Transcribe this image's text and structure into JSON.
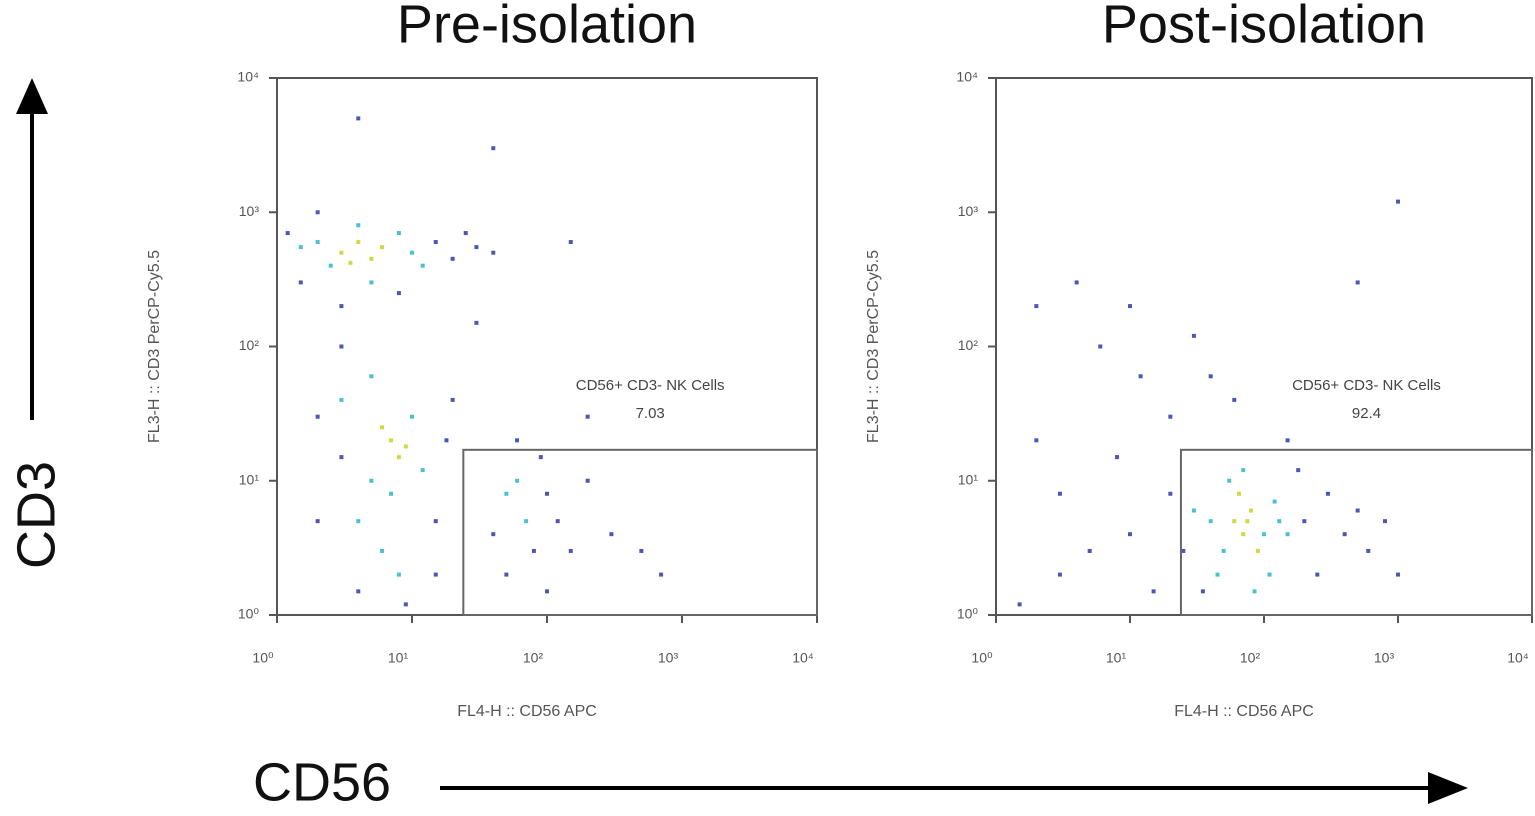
{
  "annotations": {
    "y": "CD3",
    "x": "CD56"
  },
  "chart_data": [
    {
      "type": "scatter",
      "title": "Pre-isolation",
      "xlabel": "FL4-H :: CD56 APC",
      "ylabel": "FL3-H :: CD3 PerCP-Cy5.5",
      "log_x": true,
      "log_y": true,
      "xlim": [
        1,
        10000
      ],
      "ylim": [
        1,
        10000
      ],
      "xticks": [
        {
          "value": 1,
          "label": "10⁰"
        },
        {
          "value": 10,
          "label": "10¹"
        },
        {
          "value": 100,
          "label": "10²"
        },
        {
          "value": 1000,
          "label": "10³"
        },
        {
          "value": 10000,
          "label": "10⁴"
        }
      ],
      "yticks": [
        {
          "value": 1,
          "label": "10⁰"
        },
        {
          "value": 10,
          "label": "10¹"
        },
        {
          "value": 100,
          "label": "10²"
        },
        {
          "value": 1000,
          "label": "10³"
        },
        {
          "value": 10000,
          "label": "10⁴"
        }
      ],
      "gate": {
        "xlim": [
          24,
          10000
        ],
        "ylim": [
          1,
          17
        ],
        "label": "CD56+ CD3- NK Cells",
        "percent": 7.03
      },
      "series": [
        {
          "color": "#2a3aa8",
          "x": [
            1.2,
            1.5,
            15,
            20,
            30,
            40,
            25,
            2,
            8,
            3,
            2,
            3,
            2,
            15,
            18,
            20,
            15,
            4,
            9,
            3,
            40,
            80,
            100,
            120,
            90,
            50,
            150,
            200,
            60,
            300,
            500,
            700,
            100,
            30,
            200,
            150,
            40,
            4
          ],
          "y": [
            700,
            300,
            600,
            450,
            550,
            500,
            700,
            1000,
            250,
            200,
            30,
            15,
            5,
            5,
            20,
            40,
            2,
            1.5,
            1.2,
            100,
            4,
            3,
            8,
            5,
            15,
            2,
            3,
            10,
            20,
            4,
            3,
            2,
            1.5,
            150,
            30,
            600,
            3000,
            5000
          ]
        },
        {
          "color": "#2bb5c8",
          "x": [
            2,
            2.5,
            8,
            10,
            1.5,
            12,
            5,
            4,
            5,
            7,
            10,
            4,
            6,
            12,
            50,
            70,
            60,
            3,
            8,
            5
          ],
          "y": [
            600,
            400,
            700,
            500,
            550,
            400,
            300,
            800,
            10,
            8,
            30,
            5,
            3,
            12,
            8,
            5,
            10,
            40,
            2,
            60
          ]
        },
        {
          "color": "#c8d21e",
          "x": [
            3,
            4,
            5,
            6,
            3.5,
            7,
            8,
            6,
            9
          ],
          "y": [
            500,
            600,
            450,
            550,
            420,
            20,
            15,
            25,
            18
          ]
        }
      ]
    },
    {
      "type": "scatter",
      "title": "Post-isolation",
      "xlabel": "FL4-H :: CD56 APC",
      "ylabel": "FL3-H :: CD3 PerCP-Cy5.5",
      "log_x": true,
      "log_y": true,
      "xlim": [
        1,
        10000
      ],
      "ylim": [
        1,
        10000
      ],
      "xticks": [
        {
          "value": 1,
          "label": "10⁰"
        },
        {
          "value": 10,
          "label": "10¹"
        },
        {
          "value": 100,
          "label": "10²"
        },
        {
          "value": 1000,
          "label": "10³"
        },
        {
          "value": 10000,
          "label": "10⁴"
        }
      ],
      "yticks": [
        {
          "value": 1,
          "label": "10⁰"
        },
        {
          "value": 10,
          "label": "10¹"
        },
        {
          "value": 100,
          "label": "10²"
        },
        {
          "value": 1000,
          "label": "10³"
        },
        {
          "value": 10000,
          "label": "10⁴"
        }
      ],
      "gate": {
        "xlim": [
          24,
          10000
        ],
        "ylim": [
          1,
          17
        ],
        "label": "CD56+ CD3- NK Cells",
        "percent": 92.4
      },
      "series": [
        {
          "color": "#2a3aa8",
          "x": [
            25,
            20,
            200,
            300,
            400,
            500,
            250,
            180,
            35,
            600,
            800,
            1000,
            10,
            5,
            3,
            2,
            8,
            12,
            6,
            20,
            3,
            1.5,
            15,
            2,
            4,
            30,
            1000,
            500,
            60,
            150,
            40,
            10
          ],
          "y": [
            3,
            8,
            5,
            8,
            4,
            6,
            2,
            12,
            1.5,
            3,
            5,
            2,
            4,
            3,
            8,
            20,
            15,
            60,
            100,
            30,
            2,
            1.2,
            1.5,
            200,
            300,
            120,
            1200,
            300,
            40,
            20,
            60,
            200
          ]
        },
        {
          "color": "#2bb5c8",
          "x": [
            40,
            50,
            100,
            120,
            55,
            45,
            110,
            130,
            70,
            30,
            150,
            85
          ],
          "y": [
            5,
            3,
            4,
            7,
            10,
            2,
            2,
            5,
            12,
            6,
            4,
            1.5
          ]
        },
        {
          "color": "#c8d21e",
          "x": [
            60,
            70,
            80,
            65,
            90,
            75
          ],
          "y": [
            5,
            4,
            6,
            8,
            3,
            5
          ]
        }
      ]
    }
  ]
}
